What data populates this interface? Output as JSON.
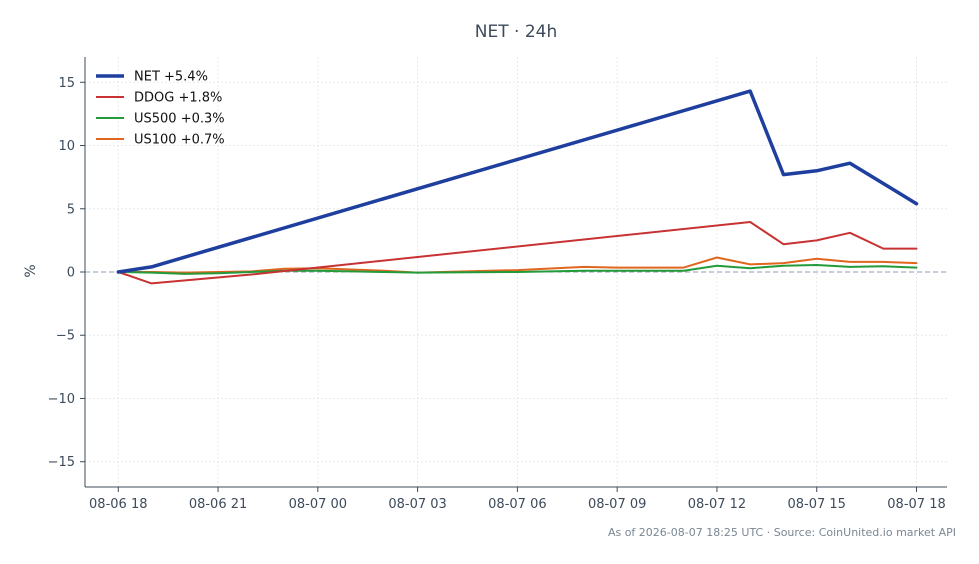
{
  "chart_data": {
    "type": "line",
    "title": "NET · 24h",
    "xlabel": "",
    "ylabel": "%",
    "ylim": [
      -17,
      17
    ],
    "yticks": [
      15,
      10,
      5,
      0,
      -5,
      -10,
      -15
    ],
    "ytick_labels": [
      "15",
      "10",
      "5",
      "0",
      "−5",
      "−10",
      "−15"
    ],
    "xlim": [
      "08-06 17:00",
      "08-07 18:55"
    ],
    "xticks": [
      "08-06 18:00",
      "08-06 21:00",
      "08-07 00:00",
      "08-07 03:00",
      "08-07 06:00",
      "08-07 09:00",
      "08-07 12:00",
      "08-07 15:00",
      "08-07 18:00"
    ],
    "xtick_labels": [
      "08-06 18",
      "08-06 21",
      "08-07 00",
      "08-07 03",
      "08-07 06",
      "08-07 09",
      "08-07 12",
      "08-07 15",
      "08-07 18"
    ],
    "grid": true,
    "zero_line": true,
    "legend_position": "top-left",
    "series": [
      {
        "name": "NET +5.4%",
        "color": "#1f3f9f",
        "points": [
          [
            "08-06 18:00",
            0.0
          ],
          [
            "08-06 19:00",
            0.4
          ],
          [
            "08-07 13:00",
            14.3
          ],
          [
            "08-07 14:00",
            7.7
          ],
          [
            "08-07 15:00",
            8.0
          ],
          [
            "08-07 16:00",
            8.6
          ],
          [
            "08-07 18:00",
            5.4
          ]
        ]
      },
      {
        "name": "DDOG +1.8%",
        "color": "#c83232",
        "points": [
          [
            "08-06 18:00",
            0.0
          ],
          [
            "08-06 19:00",
            -0.9
          ],
          [
            "08-06 22:00",
            -0.2
          ],
          [
            "08-07 13:00",
            3.95
          ],
          [
            "08-07 14:00",
            2.2
          ],
          [
            "08-07 15:00",
            2.5
          ],
          [
            "08-07 16:00",
            3.1
          ],
          [
            "08-07 17:00",
            1.85
          ],
          [
            "08-07 18:00",
            1.85
          ]
        ]
      },
      {
        "name": "US500 +0.3%",
        "color": "#239b3b",
        "points": [
          [
            "08-06 18:00",
            0.0
          ],
          [
            "08-06 19:00",
            -0.05
          ],
          [
            "08-06 20:00",
            -0.15
          ],
          [
            "08-06 21:00",
            -0.1
          ],
          [
            "08-06 23:00",
            0.1
          ],
          [
            "08-07 00:00",
            0.1
          ],
          [
            "08-07 01:00",
            0.05
          ],
          [
            "08-07 02:00",
            0.0
          ],
          [
            "08-07 03:00",
            -0.05
          ],
          [
            "08-07 06:00",
            0.0
          ],
          [
            "08-07 07:00",
            0.05
          ],
          [
            "08-07 08:00",
            0.1
          ],
          [
            "08-07 11:00",
            0.1
          ],
          [
            "08-07 12:00",
            0.5
          ],
          [
            "08-07 13:00",
            0.3
          ],
          [
            "08-07 14:00",
            0.5
          ],
          [
            "08-07 15:00",
            0.55
          ],
          [
            "08-07 16:00",
            0.4
          ],
          [
            "08-07 17:00",
            0.45
          ],
          [
            "08-07 18:00",
            0.35
          ]
        ]
      },
      {
        "name": "US100 +0.7%",
        "color": "#e0661f",
        "points": [
          [
            "08-06 18:00",
            0.0
          ],
          [
            "08-06 19:00",
            0.0
          ],
          [
            "08-06 20:00",
            -0.05
          ],
          [
            "08-06 21:00",
            0.0
          ],
          [
            "08-06 22:00",
            0.05
          ],
          [
            "08-06 23:00",
            0.25
          ],
          [
            "08-07 00:00",
            0.3
          ],
          [
            "08-07 01:00",
            0.2
          ],
          [
            "08-07 02:00",
            0.1
          ],
          [
            "08-07 03:00",
            -0.05
          ],
          [
            "08-07 06:00",
            0.15
          ],
          [
            "08-07 08:00",
            0.4
          ],
          [
            "08-07 09:00",
            0.35
          ],
          [
            "08-07 11:00",
            0.35
          ],
          [
            "08-07 12:00",
            1.15
          ],
          [
            "08-07 13:00",
            0.6
          ],
          [
            "08-07 14:00",
            0.7
          ],
          [
            "08-07 15:00",
            1.05
          ],
          [
            "08-07 16:00",
            0.8
          ],
          [
            "08-07 17:00",
            0.8
          ],
          [
            "08-07 18:00",
            0.7
          ]
        ]
      }
    ]
  },
  "footer": "As of 2026-08-07 18:25 UTC · Source: CoinUnited.io market API",
  "colors": {
    "text": "#3d4b5a",
    "grid": "#e6e9ec",
    "axis": "#3d4b5a",
    "zero_line": "#8fa0b0",
    "footer": "#7a8793"
  }
}
